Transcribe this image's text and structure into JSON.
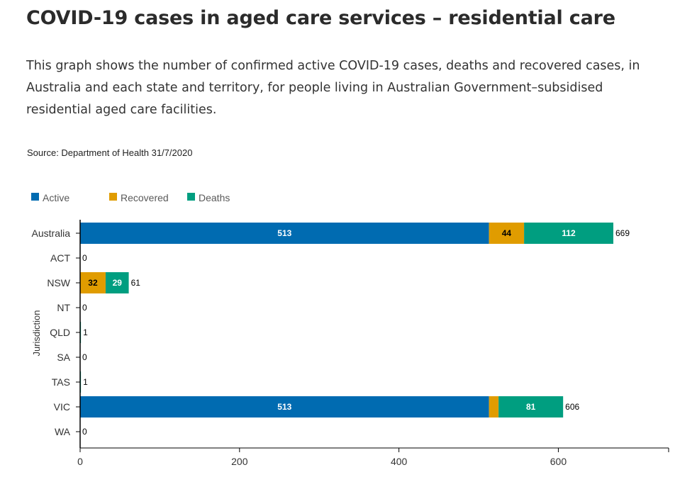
{
  "page": {
    "title": "COVID-19 cases in aged care services – residential care",
    "description": "This graph shows the number of confirmed active COVID-19 cases, deaths and recovered cases, in Australia and each state and territory, for people living in Australian Government–subsidised residential aged care facilities.",
    "source": "Source: Department of Health 31/7/2020"
  },
  "colors": {
    "active": "#006bb1",
    "recovered": "#e09c00",
    "deaths": "#009e80"
  },
  "chart_data": {
    "type": "bar",
    "orientation": "horizontal",
    "stacked": true,
    "categories": [
      "Australia",
      "ACT",
      "NSW",
      "NT",
      "QLD",
      "SA",
      "TAS",
      "VIC",
      "WA"
    ],
    "series": [
      {
        "name": "Active",
        "key": "active",
        "values": [
          513,
          0,
          0,
          0,
          0,
          0,
          0,
          513,
          0
        ]
      },
      {
        "name": "Recovered",
        "key": "recovered",
        "values": [
          44,
          0,
          32,
          0,
          0,
          0,
          0,
          12,
          0
        ]
      },
      {
        "name": "Deaths",
        "key": "deaths",
        "values": [
          112,
          0,
          29,
          0,
          1,
          0,
          1,
          81,
          0
        ]
      }
    ],
    "segment_labels": [
      [
        "513",
        "",
        "",
        "",
        "",
        "",
        "",
        "513",
        ""
      ],
      [
        "44",
        "",
        "32",
        "",
        "",
        "",
        "",
        "",
        ""
      ],
      [
        "112",
        "",
        "29",
        "",
        "",
        "",
        "",
        "81",
        ""
      ]
    ],
    "totals": [
      669,
      0,
      61,
      0,
      1,
      0,
      1,
      606,
      0
    ],
    "title": "COVID-19 cases in aged care services – residential care",
    "xlabel": "",
    "ylabel": "Jurisdiction",
    "xlim": [
      0,
      735
    ],
    "xticks": [
      0,
      200,
      400,
      600
    ],
    "grid": false,
    "legend_position": "top-left"
  }
}
